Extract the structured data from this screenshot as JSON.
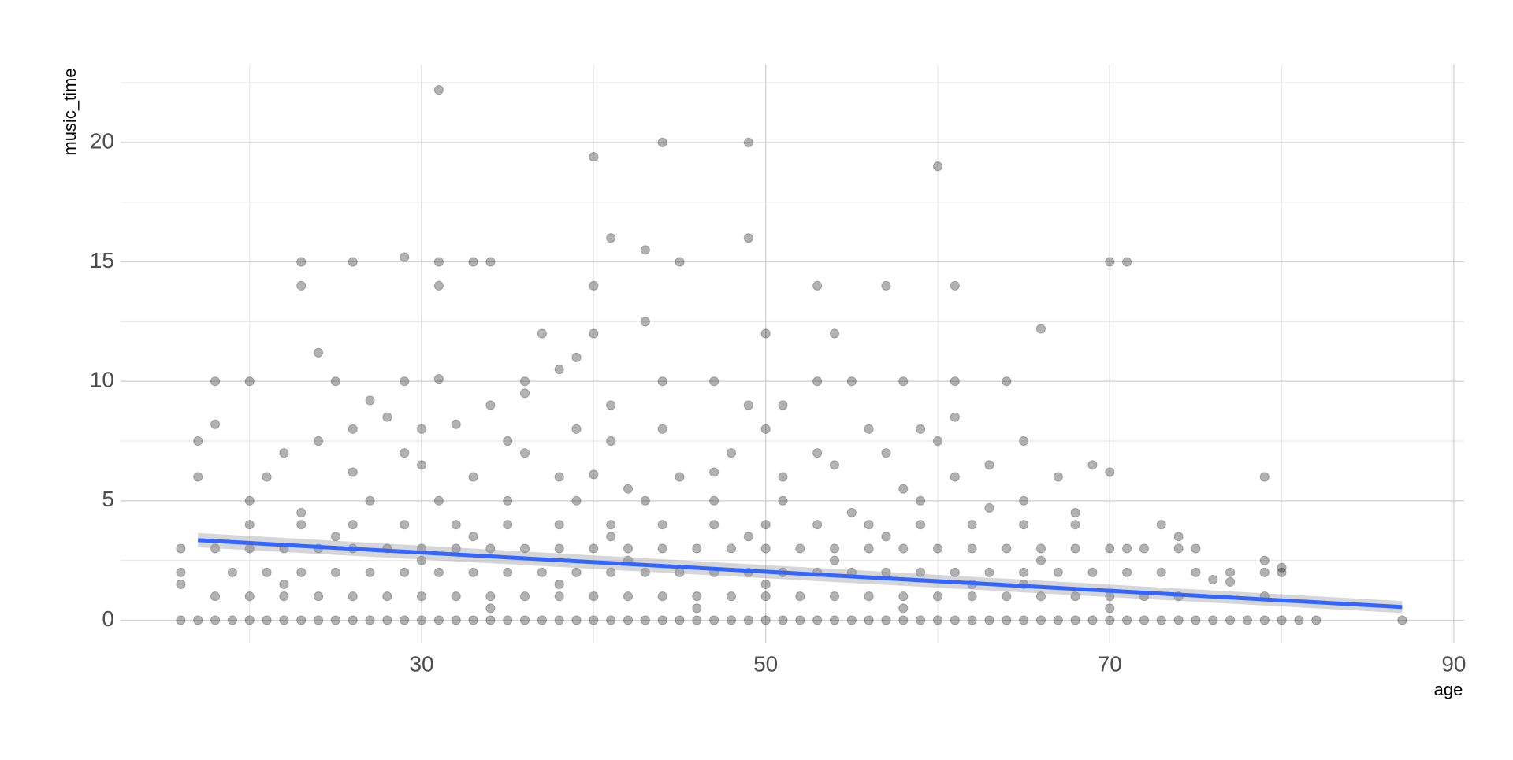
{
  "chart_data": {
    "type": "scatter",
    "x_label": "age",
    "y_label": "music_time",
    "xlim": [
      12.5,
      90.6
    ],
    "ylim": [
      -0.94,
      23.26
    ],
    "xticks": [
      30,
      50,
      70,
      90
    ],
    "yticks": [
      0,
      5,
      10,
      15,
      20
    ],
    "x_minor_grid": [
      20,
      40,
      60,
      80
    ],
    "y_minor_grid": [
      2.5,
      7.5,
      12.5,
      17.5,
      22.5
    ],
    "grid": true,
    "color": "#000000",
    "opacity": 0.3,
    "x": [
      31,
      40,
      44,
      49,
      60,
      41,
      49,
      43,
      45,
      33,
      34,
      31,
      31,
      23,
      23,
      26,
      29,
      40,
      53,
      57,
      61,
      70,
      71,
      66,
      43,
      37,
      40,
      50,
      54,
      24,
      39,
      38,
      20,
      18,
      25,
      29,
      31,
      36,
      44,
      47,
      53,
      55,
      58,
      61,
      64,
      36,
      34,
      41,
      49,
      51,
      27,
      18,
      28,
      32,
      26,
      30,
      39,
      44,
      50,
      56,
      59,
      61,
      17,
      22,
      24,
      29,
      35,
      36,
      41,
      48,
      53,
      57,
      60,
      65,
      17,
      21,
      26,
      30,
      33,
      38,
      40,
      42,
      45,
      47,
      51,
      54,
      58,
      61,
      63,
      67,
      69,
      70,
      79,
      20,
      23,
      27,
      31,
      35,
      39,
      43,
      47,
      51,
      55,
      59,
      63,
      65,
      68,
      73,
      74,
      75,
      71,
      79,
      80,
      80,
      76,
      77,
      79,
      16,
      16,
      16,
      16,
      22,
      30,
      34,
      38,
      42,
      46,
      50,
      54,
      58,
      62,
      66,
      70,
      25,
      33,
      41,
      49,
      57,
      65,
      17,
      18,
      19,
      20,
      21,
      22,
      23,
      24,
      25,
      26,
      27,
      28,
      29,
      30,
      31,
      32,
      33,
      34,
      35,
      36,
      37,
      38,
      39,
      40,
      41,
      42,
      43,
      44,
      45,
      46,
      47,
      48,
      49,
      50,
      51,
      52,
      53,
      54,
      55,
      56,
      57,
      58,
      59,
      60,
      61,
      62,
      63,
      64,
      65,
      66,
      67,
      68,
      69,
      70,
      71,
      72,
      73,
      74,
      75,
      76,
      77,
      78,
      79,
      80,
      81,
      82,
      87,
      18,
      20,
      22,
      24,
      26,
      28,
      30,
      32,
      34,
      36,
      38,
      40,
      42,
      44,
      46,
      48,
      50,
      52,
      54,
      56,
      58,
      60,
      62,
      64,
      66,
      68,
      70,
      72,
      74,
      19,
      21,
      23,
      25,
      27,
      29,
      31,
      33,
      35,
      37,
      39,
      41,
      43,
      45,
      47,
      49,
      51,
      53,
      55,
      57,
      59,
      61,
      63,
      65,
      67,
      69,
      71,
      73,
      75,
      77,
      79,
      18,
      20,
      22,
      24,
      26,
      28,
      30,
      32,
      34,
      36,
      38,
      40,
      42,
      44,
      46,
      48,
      50,
      52,
      54,
      56,
      58,
      60,
      62,
      64,
      66,
      68,
      70,
      72,
      74,
      20,
      23,
      26,
      29,
      32,
      35,
      38,
      41,
      44,
      47,
      50,
      53,
      56,
      59,
      62,
      65,
      68
    ],
    "values": [
      22.2,
      19.4,
      20,
      20,
      19,
      16,
      16,
      15.5,
      15,
      15,
      15,
      15,
      14,
      15,
      14,
      15,
      15.2,
      14,
      14,
      14,
      14,
      15,
      15,
      12.2,
      12.5,
      12,
      12,
      12,
      12,
      11.2,
      11,
      10.5,
      10,
      10,
      10,
      10,
      10.1,
      10,
      10,
      10,
      10,
      10,
      10,
      10,
      10,
      9.5,
      9,
      9,
      9,
      9,
      9.2,
      8.2,
      8.5,
      8.2,
      8,
      8,
      8,
      8,
      8,
      8,
      8,
      8.5,
      7.5,
      7,
      7.5,
      7,
      7.5,
      7,
      7.5,
      7,
      7,
      7,
      7.5,
      7.5,
      6,
      6,
      6.2,
      6.5,
      6,
      6,
      6.1,
      5.5,
      6,
      6.2,
      6,
      6.5,
      5.5,
      6,
      6.5,
      6,
      6.5,
      6.2,
      6,
      5,
      4.5,
      5,
      5,
      5,
      5,
      5,
      5,
      5,
      4.5,
      5,
      4.7,
      5,
      4.5,
      4,
      3.5,
      3,
      3,
      2.5,
      2.2,
      2,
      1.7,
      1.6,
      1,
      3,
      2,
      1.5,
      0,
      1.5,
      2.5,
      0.5,
      1.5,
      2.5,
      0.5,
      1.5,
      2.5,
      0.5,
      1.5,
      2.5,
      0.5,
      3.5,
      3.5,
      3.5,
      3.5,
      3.5,
      1.5,
      0,
      0,
      0,
      0,
      0,
      0,
      0,
      0,
      0,
      0,
      0,
      0,
      0,
      0,
      0,
      0,
      0,
      0,
      0,
      0,
      0,
      0,
      0,
      0,
      0,
      0,
      0,
      0,
      0,
      0,
      0,
      0,
      0,
      0,
      0,
      0,
      0,
      0,
      0,
      0,
      0,
      0,
      0,
      0,
      0,
      0,
      0,
      0,
      0,
      0,
      0,
      0,
      0,
      0,
      0,
      0,
      0,
      0,
      0,
      0,
      0,
      0,
      0,
      0,
      0,
      0,
      0,
      1,
      1,
      1,
      1,
      1,
      1,
      1,
      1,
      1,
      1,
      1,
      1,
      1,
      1,
      1,
      1,
      1,
      1,
      1,
      1,
      1,
      1,
      1,
      1,
      1,
      1,
      1,
      1,
      1,
      2,
      2,
      2,
      2,
      2,
      2,
      2,
      2,
      2,
      2,
      2,
      2,
      2,
      2,
      2,
      2,
      2,
      2,
      2,
      2,
      2,
      2,
      2,
      2,
      2,
      2,
      2,
      2,
      2,
      2,
      2,
      3,
      3,
      3,
      3,
      3,
      3,
      3,
      3,
      3,
      3,
      3,
      3,
      3,
      3,
      3,
      3,
      3,
      3,
      3,
      3,
      3,
      3,
      3,
      3,
      3,
      3,
      3,
      3,
      3,
      4,
      4,
      4,
      4,
      4,
      4,
      4,
      4,
      4,
      4,
      4,
      4,
      4,
      4,
      4,
      4,
      4
    ],
    "fit": {
      "color": "#3366ff",
      "band_color": "#999999",
      "x": [
        17,
        87
      ],
      "values": [
        3.35,
        0.55
      ],
      "lower": [
        3.05,
        0.3
      ],
      "upper": [
        3.65,
        0.8
      ]
    }
  }
}
